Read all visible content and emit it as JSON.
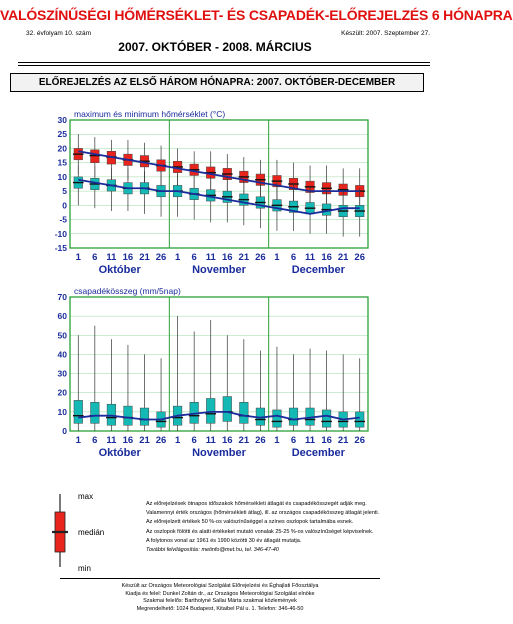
{
  "header": {
    "title": "VALÓSZÍNŰSÉGI HŐMÉRSÉKLET- ÉS CSAPADÉK-ELŐREJELZÉS 6 HÓNAPRA",
    "issue": "32. évfolyam 10. szám",
    "period": "2007. OKTÓBER - 2008. MÁRCIUS",
    "made": "Készült: 2007. Szeptember 27."
  },
  "section_title": "ELŐREJELZÉS AZ ELSŐ HÁROM HÓNAPRA: 2007. OKTÓBER-DECEMBER",
  "chart_data": [
    {
      "type": "boxplot",
      "title": "maximum és minimum hőmérséklet (°C)",
      "x_tick_labels": [
        "1",
        "6",
        "11",
        "16",
        "21",
        "26",
        "1",
        "6",
        "11",
        "16",
        "21",
        "26",
        "1",
        "6",
        "11",
        "16",
        "21",
        "26"
      ],
      "month_labels": [
        "Október",
        "November",
        "December"
      ],
      "ylim": [
        -15,
        30
      ],
      "y_ticks": [
        -15,
        -10,
        -5,
        0,
        5,
        10,
        15,
        20,
        25,
        30
      ],
      "grid": true,
      "series": [
        {
          "color": "#e8241c",
          "median": [
            18,
            17.5,
            17,
            16,
            15.5,
            14,
            13.5,
            12.5,
            11.5,
            11,
            10,
            9,
            8.5,
            7.5,
            6.5,
            6,
            5.5,
            5
          ],
          "q1": [
            16,
            15,
            14.5,
            14,
            13.5,
            12,
            11.5,
            10.5,
            9.5,
            9,
            8,
            7,
            6.5,
            5.5,
            4.5,
            4,
            3.5,
            3
          ],
          "q3": [
            20,
            19.5,
            19,
            18,
            17.5,
            16,
            15.5,
            14.5,
            13.5,
            13,
            12,
            11,
            10.5,
            9.5,
            8.5,
            8,
            7.5,
            7
          ],
          "min": [
            11,
            10,
            9,
            9,
            8,
            6,
            6,
            5,
            4,
            3,
            3,
            2,
            1,
            1,
            0,
            0,
            -1,
            -2
          ],
          "max": [
            25,
            24,
            23,
            23,
            22,
            21,
            20,
            19,
            19,
            18,
            17,
            16,
            16,
            15,
            14,
            14,
            13,
            13
          ],
          "mean_line": [
            19,
            18,
            17,
            16,
            15,
            14,
            13,
            12,
            11,
            10,
            9,
            8,
            7,
            6,
            5,
            5,
            5,
            5
          ]
        },
        {
          "color": "#14b8b4",
          "median": [
            8,
            7.5,
            7,
            6,
            6,
            5,
            5,
            4,
            3.5,
            3,
            2,
            1,
            0,
            -0.5,
            -1,
            -1.5,
            -2,
            -2
          ],
          "q1": [
            6,
            5.5,
            5,
            4,
            4,
            3,
            3,
            2,
            1.5,
            1,
            0,
            -1,
            -2,
            -2.5,
            -3,
            -3.5,
            -4,
            -4
          ],
          "q3": [
            10,
            9.5,
            9,
            8,
            8,
            7,
            7,
            6,
            5.5,
            5,
            4,
            3,
            2,
            1.5,
            1,
            0.5,
            0,
            0
          ],
          "min": [
            0,
            -1,
            -2,
            -2,
            -3,
            -4,
            -4,
            -5,
            -6,
            -6,
            -7,
            -8,
            -9,
            -9,
            -10,
            -10,
            -11,
            -11
          ],
          "max": [
            14,
            14,
            13,
            13,
            12,
            12,
            11,
            10,
            10,
            10,
            9,
            9,
            8,
            8,
            7,
            6,
            6,
            6
          ],
          "mean_line": [
            9,
            8,
            7,
            6,
            6,
            5,
            5,
            4,
            3,
            2,
            1,
            0,
            -1,
            -2,
            -3,
            -2,
            -1,
            -1
          ]
        }
      ]
    },
    {
      "type": "boxplot",
      "title": "csapadékösszeg (mm/5nap)",
      "x_tick_labels": [
        "1",
        "6",
        "11",
        "16",
        "21",
        "26",
        "1",
        "6",
        "11",
        "16",
        "21",
        "26",
        "1",
        "6",
        "11",
        "16",
        "21",
        "26"
      ],
      "month_labels": [
        "Október",
        "November",
        "December"
      ],
      "ylim": [
        0,
        70
      ],
      "y_ticks": [
        0,
        10,
        20,
        30,
        40,
        50,
        60,
        70
      ],
      "grid": true,
      "series": [
        {
          "color": "#14b8b4",
          "median": [
            8,
            8,
            7,
            7,
            6,
            5,
            7,
            8,
            9,
            10,
            8,
            6,
            5,
            6,
            6,
            5,
            5,
            5
          ],
          "q1": [
            4,
            4,
            3,
            3,
            3,
            2,
            3,
            4,
            4,
            5,
            4,
            3,
            2,
            3,
            3,
            2,
            2,
            2
          ],
          "q3": [
            16,
            15,
            14,
            13,
            12,
            10,
            13,
            15,
            17,
            18,
            15,
            12,
            11,
            12,
            12,
            11,
            10,
            10
          ],
          "min": [
            0,
            0,
            0,
            0,
            0,
            0,
            0,
            0,
            0,
            0,
            0,
            0,
            0,
            0,
            0,
            0,
            0,
            0
          ],
          "max": [
            50,
            55,
            48,
            45,
            40,
            38,
            60,
            52,
            58,
            50,
            48,
            42,
            44,
            40,
            43,
            42,
            40,
            38
          ],
          "mean_line": [
            7,
            8,
            8,
            7,
            6,
            6,
            8,
            9,
            10,
            10,
            8,
            7,
            8,
            6,
            7,
            8,
            6,
            7
          ]
        }
      ]
    }
  ],
  "legend": {
    "max": "max",
    "median": "medián",
    "min": "min"
  },
  "notes": [
    "Az előrejelzések ötnapos időszakok hőmérsékleti átlagát és csapadékösszegét adják meg.",
    "Valamennyi érték országos (hőmérsékleti átlag), ill. az országos csapadékösszeg átlagát jelenti.",
    "Az előrejelzett értékek 50 %-os valószínűséggel a színes oszlopok tartalmába esnek.",
    "Az oszlopok fölötti és alatti értékeket mutató vonalak 25-25 %-os valószínűséget képviselnek.",
    "A folytonos vonal az 1961 és 1990 közötti 30 év átlagát mutatja.",
    "További felvilágosítás: metinfo@met.hu, tel. 346-47-40"
  ],
  "footer": [
    "Készült az Országos Meteorológiai Szolgálat Előrejelzési és Éghajlati Főosztálya",
    "Kiadja és felel: Dunkel Zoltán dr., az Országos Meteorológiai Szolgálat elnöke",
    "Szakmai felelős: Bartholyné Sallai Márta szakmai közlemények",
    "Megrendelhető: 1024 Budapest, Kitaibel Pál u. 1. Telefon: 346-46-50"
  ]
}
